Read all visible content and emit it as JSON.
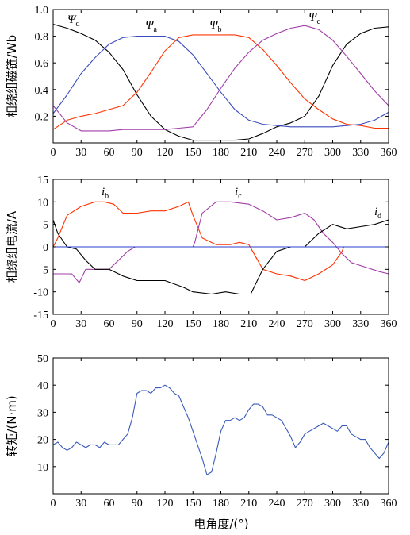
{
  "chart_data": [
    {
      "type": "line",
      "ylabel": "相绕组磁链/Wb",
      "xlim": [
        0,
        360
      ],
      "ylim": [
        0,
        1.0
      ],
      "xticks": [
        0,
        30,
        60,
        90,
        120,
        150,
        180,
        210,
        240,
        270,
        300,
        330,
        360
      ],
      "yticks": [
        0.2,
        0.4,
        0.6,
        0.8,
        1.0
      ],
      "ytick_labels": [
        "0.2",
        "0.4",
        "0.6",
        "0.8",
        "1.0"
      ],
      "series": [
        {
          "name": "Ψd",
          "color": "#000000",
          "x": [
            0,
            15,
            30,
            45,
            60,
            75,
            90,
            105,
            120,
            135,
            150,
            165,
            180,
            195,
            210,
            225,
            240,
            255,
            270,
            285,
            300,
            315,
            330,
            345,
            360
          ],
          "y": [
            0.89,
            0.86,
            0.82,
            0.77,
            0.68,
            0.55,
            0.36,
            0.2,
            0.1,
            0.05,
            0.02,
            0.02,
            0.02,
            0.02,
            0.03,
            0.07,
            0.12,
            0.15,
            0.2,
            0.35,
            0.58,
            0.74,
            0.82,
            0.86,
            0.87
          ]
        },
        {
          "name": "Ψa",
          "color": "#3a4bbf",
          "x": [
            0,
            15,
            30,
            45,
            60,
            75,
            90,
            105,
            120,
            135,
            150,
            165,
            180,
            195,
            210,
            225,
            240,
            255,
            270,
            285,
            300,
            315,
            330,
            345,
            360
          ],
          "y": [
            0.22,
            0.36,
            0.52,
            0.64,
            0.74,
            0.79,
            0.8,
            0.8,
            0.8,
            0.76,
            0.66,
            0.52,
            0.38,
            0.25,
            0.17,
            0.14,
            0.13,
            0.12,
            0.12,
            0.12,
            0.12,
            0.13,
            0.14,
            0.17,
            0.23
          ]
        },
        {
          "name": "Ψb",
          "color": "#ff3300",
          "x": [
            0,
            15,
            30,
            45,
            60,
            75,
            90,
            105,
            120,
            135,
            150,
            165,
            180,
            195,
            210,
            225,
            240,
            255,
            270,
            285,
            300,
            315,
            330,
            345,
            360
          ],
          "y": [
            0.1,
            0.17,
            0.2,
            0.22,
            0.25,
            0.28,
            0.38,
            0.53,
            0.69,
            0.79,
            0.81,
            0.81,
            0.81,
            0.81,
            0.79,
            0.7,
            0.58,
            0.45,
            0.33,
            0.25,
            0.18,
            0.14,
            0.13,
            0.11,
            0.11
          ]
        },
        {
          "name": "Ψc",
          "color": "#a23da8",
          "x": [
            0,
            15,
            30,
            45,
            60,
            75,
            90,
            105,
            120,
            135,
            150,
            165,
            180,
            195,
            210,
            225,
            240,
            255,
            270,
            285,
            300,
            315,
            330,
            345,
            360
          ],
          "y": [
            0.28,
            0.15,
            0.09,
            0.09,
            0.09,
            0.1,
            0.1,
            0.1,
            0.1,
            0.11,
            0.12,
            0.25,
            0.41,
            0.56,
            0.68,
            0.77,
            0.82,
            0.86,
            0.88,
            0.85,
            0.77,
            0.65,
            0.52,
            0.39,
            0.28
          ]
        }
      ]
    },
    {
      "type": "line",
      "ylabel": "相绕组电流/A",
      "xlim": [
        0,
        360
      ],
      "ylim": [
        -15,
        15
      ],
      "xticks": [
        0,
        30,
        60,
        90,
        120,
        150,
        180,
        210,
        240,
        270,
        300,
        330,
        360
      ],
      "yticks": [
        -15,
        -10,
        -5,
        0,
        5,
        10,
        15
      ],
      "series": [
        {
          "name": "ib",
          "color": "#ff3300",
          "x": [
            0,
            5,
            15,
            30,
            45,
            55,
            65,
            75,
            90,
            105,
            120,
            135,
            145,
            150,
            160,
            175,
            190,
            200,
            210,
            225,
            240,
            255,
            270,
            285,
            300,
            310,
            312,
            330,
            360
          ],
          "y": [
            0,
            2,
            7,
            9,
            10,
            10,
            9.5,
            7.5,
            7.5,
            8,
            8,
            9,
            10,
            7,
            2,
            0.5,
            0.5,
            1,
            0.5,
            -5,
            -6,
            -6.5,
            -7.5,
            -6,
            -4,
            -1,
            0,
            0,
            0
          ]
        },
        {
          "name": "ic",
          "color": "#a23da8",
          "x": [
            0,
            5,
            20,
            28,
            35,
            45,
            60,
            70,
            80,
            88,
            100,
            150,
            152,
            160,
            175,
            190,
            210,
            225,
            240,
            255,
            270,
            280,
            290,
            300,
            310,
            320,
            335,
            350,
            360
          ],
          "y": [
            -6,
            -6,
            -6,
            -8,
            -5,
            -5,
            -5,
            -3,
            -1,
            0,
            0,
            0,
            1,
            7.5,
            10,
            10,
            9.5,
            8,
            6,
            6.5,
            7.5,
            6,
            3,
            1,
            -1.5,
            -3.5,
            -4.5,
            -5.5,
            -6
          ]
        },
        {
          "name": "id",
          "color": "#000000",
          "x": [
            0,
            5,
            15,
            25,
            35,
            45,
            60,
            75,
            90,
            120,
            140,
            150,
            170,
            185,
            200,
            212,
            225,
            240,
            255,
            270,
            285,
            300,
            315,
            330,
            345,
            360
          ],
          "y": [
            6,
            3,
            0,
            -0.5,
            -3,
            -5,
            -5,
            -6.5,
            -7.5,
            -7.5,
            -9,
            -10,
            -10.5,
            -10,
            -10.5,
            -10.5,
            -5,
            -1,
            0,
            0,
            3,
            5,
            4,
            4.5,
            5,
            6
          ]
        },
        {
          "name": "",
          "color": "#2b3fd1",
          "x": [
            0,
            360
          ],
          "y": [
            0,
            0
          ]
        }
      ]
    },
    {
      "type": "line",
      "ylabel": "转矩/(N·m)",
      "xlabel": "电角度/(°)",
      "xlim": [
        0,
        360
      ],
      "ylim": [
        0,
        50
      ],
      "xticks": [
        0,
        30,
        60,
        90,
        120,
        150,
        180,
        210,
        240,
        270,
        300,
        330,
        360
      ],
      "yticks": [
        10,
        20,
        30,
        40,
        50
      ],
      "series": [
        {
          "name": "",
          "color": "#3a5bb8",
          "x": [
            0,
            5,
            10,
            15,
            20,
            25,
            30,
            35,
            40,
            45,
            50,
            55,
            60,
            65,
            70,
            75,
            80,
            85,
            90,
            95,
            100,
            105,
            110,
            115,
            120,
            125,
            130,
            135,
            140,
            145,
            150,
            155,
            160,
            165,
            170,
            175,
            180,
            185,
            190,
            195,
            200,
            205,
            210,
            215,
            220,
            225,
            230,
            235,
            240,
            245,
            250,
            255,
            260,
            265,
            270,
            275,
            280,
            285,
            290,
            295,
            300,
            305,
            310,
            315,
            320,
            325,
            330,
            335,
            340,
            345,
            350,
            355,
            360
          ],
          "y": [
            18,
            19,
            17,
            16,
            17,
            19,
            18,
            17,
            18,
            18,
            17,
            19,
            18,
            18,
            18,
            20,
            22,
            28,
            37,
            38,
            38,
            37,
            39,
            39,
            40,
            39,
            37,
            36,
            32,
            28,
            23,
            18,
            13,
            7,
            8,
            15,
            23,
            27,
            27,
            28,
            27,
            28,
            31,
            33,
            33,
            32,
            29,
            29,
            28,
            27,
            24,
            21,
            17,
            19,
            22,
            23,
            24,
            25,
            26,
            25,
            24,
            23,
            25,
            25,
            22,
            21,
            20,
            20,
            17,
            15,
            13,
            15,
            19
          ]
        }
      ]
    }
  ],
  "annotations": {
    "psi_d": {
      "symbol": "Ψ",
      "sub": "d"
    },
    "psi_a": {
      "symbol": "Ψ",
      "sub": "a"
    },
    "psi_b": {
      "symbol": "Ψ",
      "sub": "b"
    },
    "psi_c": {
      "symbol": "Ψ",
      "sub": "c"
    },
    "i_b": {
      "symbol": "i",
      "sub": "b"
    },
    "i_c": {
      "symbol": "i",
      "sub": "c"
    },
    "i_d": {
      "symbol": "i",
      "sub": "d"
    }
  }
}
